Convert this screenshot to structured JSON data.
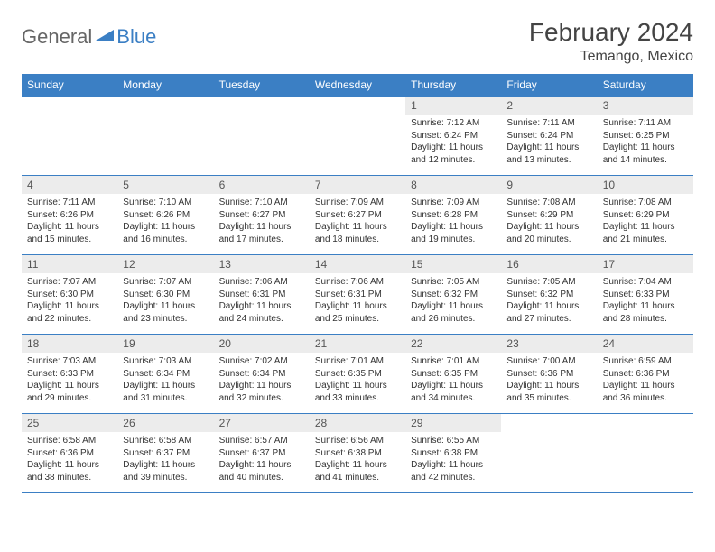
{
  "logo": {
    "general": "General",
    "blue": "Blue"
  },
  "title": "February 2024",
  "location": "Temango, Mexico",
  "colors": {
    "header_bg": "#3b7fc4",
    "header_fg": "#ffffff",
    "daynum_bg": "#ececec",
    "daynum_fg": "#555555",
    "text": "#333333",
    "border": "#3b7fc4",
    "logo_gray": "#666666",
    "logo_blue": "#3b7fc4"
  },
  "weekdays": [
    "Sunday",
    "Monday",
    "Tuesday",
    "Wednesday",
    "Thursday",
    "Friday",
    "Saturday"
  ],
  "weeks": [
    [
      null,
      null,
      null,
      null,
      {
        "day": "1",
        "sunrise": "7:12 AM",
        "sunset": "6:24 PM",
        "daylight": "11 hours and 12 minutes."
      },
      {
        "day": "2",
        "sunrise": "7:11 AM",
        "sunset": "6:24 PM",
        "daylight": "11 hours and 13 minutes."
      },
      {
        "day": "3",
        "sunrise": "7:11 AM",
        "sunset": "6:25 PM",
        "daylight": "11 hours and 14 minutes."
      }
    ],
    [
      {
        "day": "4",
        "sunrise": "7:11 AM",
        "sunset": "6:26 PM",
        "daylight": "11 hours and 15 minutes."
      },
      {
        "day": "5",
        "sunrise": "7:10 AM",
        "sunset": "6:26 PM",
        "daylight": "11 hours and 16 minutes."
      },
      {
        "day": "6",
        "sunrise": "7:10 AM",
        "sunset": "6:27 PM",
        "daylight": "11 hours and 17 minutes."
      },
      {
        "day": "7",
        "sunrise": "7:09 AM",
        "sunset": "6:27 PM",
        "daylight": "11 hours and 18 minutes."
      },
      {
        "day": "8",
        "sunrise": "7:09 AM",
        "sunset": "6:28 PM",
        "daylight": "11 hours and 19 minutes."
      },
      {
        "day": "9",
        "sunrise": "7:08 AM",
        "sunset": "6:29 PM",
        "daylight": "11 hours and 20 minutes."
      },
      {
        "day": "10",
        "sunrise": "7:08 AM",
        "sunset": "6:29 PM",
        "daylight": "11 hours and 21 minutes."
      }
    ],
    [
      {
        "day": "11",
        "sunrise": "7:07 AM",
        "sunset": "6:30 PM",
        "daylight": "11 hours and 22 minutes."
      },
      {
        "day": "12",
        "sunrise": "7:07 AM",
        "sunset": "6:30 PM",
        "daylight": "11 hours and 23 minutes."
      },
      {
        "day": "13",
        "sunrise": "7:06 AM",
        "sunset": "6:31 PM",
        "daylight": "11 hours and 24 minutes."
      },
      {
        "day": "14",
        "sunrise": "7:06 AM",
        "sunset": "6:31 PM",
        "daylight": "11 hours and 25 minutes."
      },
      {
        "day": "15",
        "sunrise": "7:05 AM",
        "sunset": "6:32 PM",
        "daylight": "11 hours and 26 minutes."
      },
      {
        "day": "16",
        "sunrise": "7:05 AM",
        "sunset": "6:32 PM",
        "daylight": "11 hours and 27 minutes."
      },
      {
        "day": "17",
        "sunrise": "7:04 AM",
        "sunset": "6:33 PM",
        "daylight": "11 hours and 28 minutes."
      }
    ],
    [
      {
        "day": "18",
        "sunrise": "7:03 AM",
        "sunset": "6:33 PM",
        "daylight": "11 hours and 29 minutes."
      },
      {
        "day": "19",
        "sunrise": "7:03 AM",
        "sunset": "6:34 PM",
        "daylight": "11 hours and 31 minutes."
      },
      {
        "day": "20",
        "sunrise": "7:02 AM",
        "sunset": "6:34 PM",
        "daylight": "11 hours and 32 minutes."
      },
      {
        "day": "21",
        "sunrise": "7:01 AM",
        "sunset": "6:35 PM",
        "daylight": "11 hours and 33 minutes."
      },
      {
        "day": "22",
        "sunrise": "7:01 AM",
        "sunset": "6:35 PM",
        "daylight": "11 hours and 34 minutes."
      },
      {
        "day": "23",
        "sunrise": "7:00 AM",
        "sunset": "6:36 PM",
        "daylight": "11 hours and 35 minutes."
      },
      {
        "day": "24",
        "sunrise": "6:59 AM",
        "sunset": "6:36 PM",
        "daylight": "11 hours and 36 minutes."
      }
    ],
    [
      {
        "day": "25",
        "sunrise": "6:58 AM",
        "sunset": "6:36 PM",
        "daylight": "11 hours and 38 minutes."
      },
      {
        "day": "26",
        "sunrise": "6:58 AM",
        "sunset": "6:37 PM",
        "daylight": "11 hours and 39 minutes."
      },
      {
        "day": "27",
        "sunrise": "6:57 AM",
        "sunset": "6:37 PM",
        "daylight": "11 hours and 40 minutes."
      },
      {
        "day": "28",
        "sunrise": "6:56 AM",
        "sunset": "6:38 PM",
        "daylight": "11 hours and 41 minutes."
      },
      {
        "day": "29",
        "sunrise": "6:55 AM",
        "sunset": "6:38 PM",
        "daylight": "11 hours and 42 minutes."
      },
      null,
      null
    ]
  ],
  "labels": {
    "sunrise": "Sunrise:",
    "sunset": "Sunset:",
    "daylight": "Daylight:"
  }
}
